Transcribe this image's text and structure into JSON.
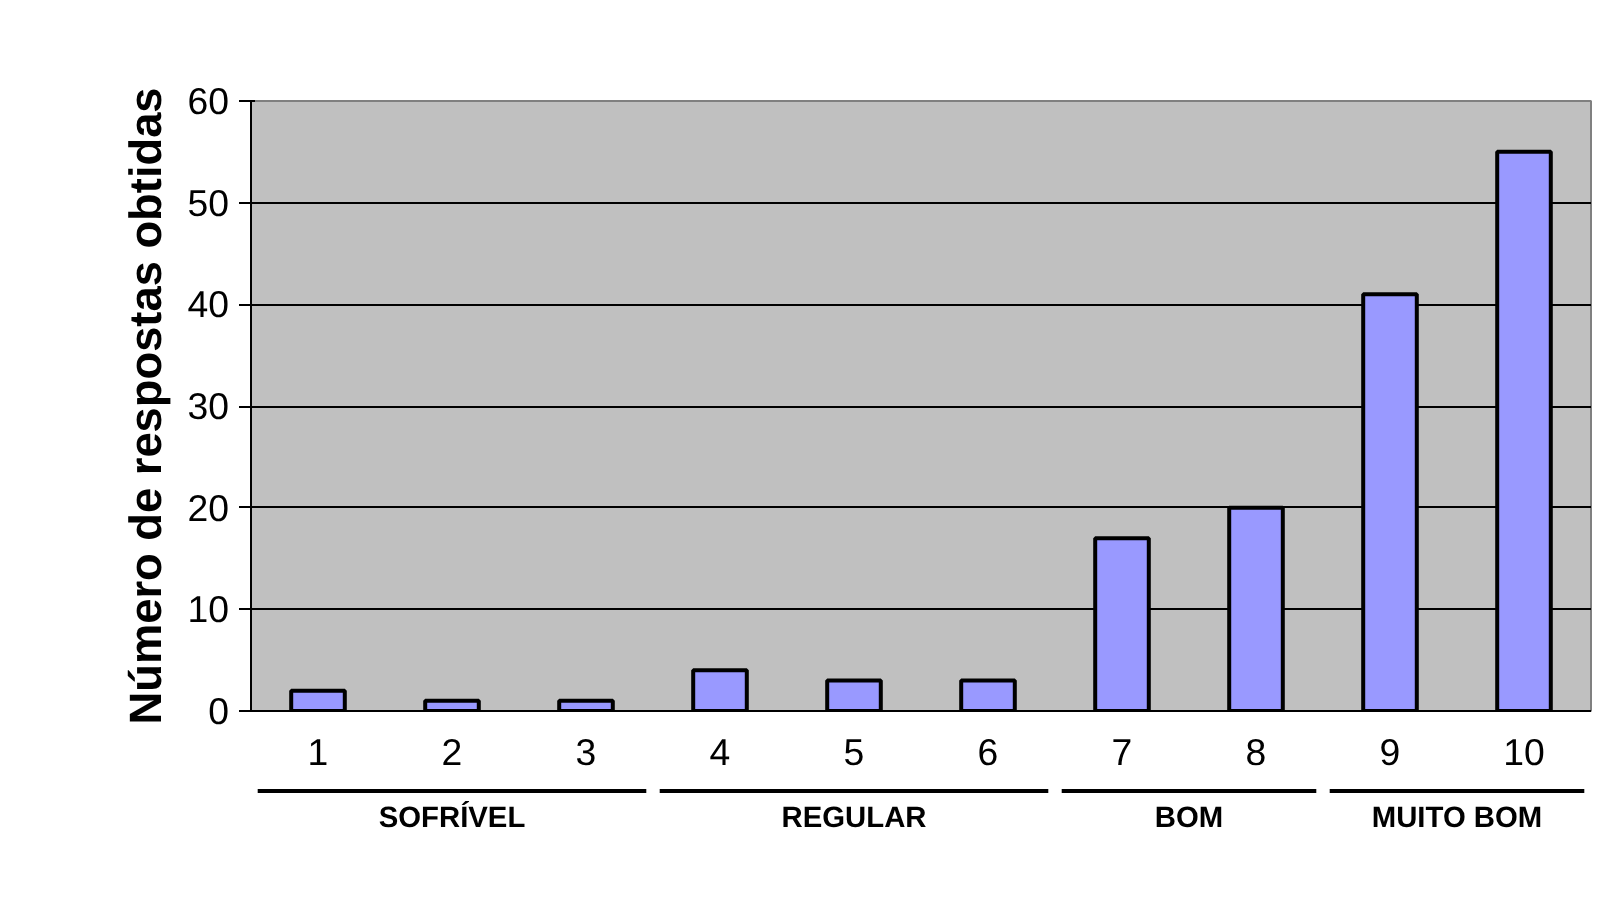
{
  "chart_data": {
    "type": "bar",
    "ylabel": "Número de respostas obtidas",
    "categories": [
      "1",
      "2",
      "3",
      "4",
      "5",
      "6",
      "7",
      "8",
      "9",
      "10"
    ],
    "values": [
      2,
      1,
      1,
      4,
      3,
      3,
      17,
      20,
      41,
      55
    ],
    "color": "#9999ff",
    "ylim": [
      0,
      60
    ],
    "yticks": [
      0,
      10,
      20,
      30,
      40,
      50,
      60
    ],
    "grid": "y",
    "annotations": [
      "SOFRÍVEL",
      "REGULAR",
      "BOM",
      "MUITO BOM"
    ]
  }
}
